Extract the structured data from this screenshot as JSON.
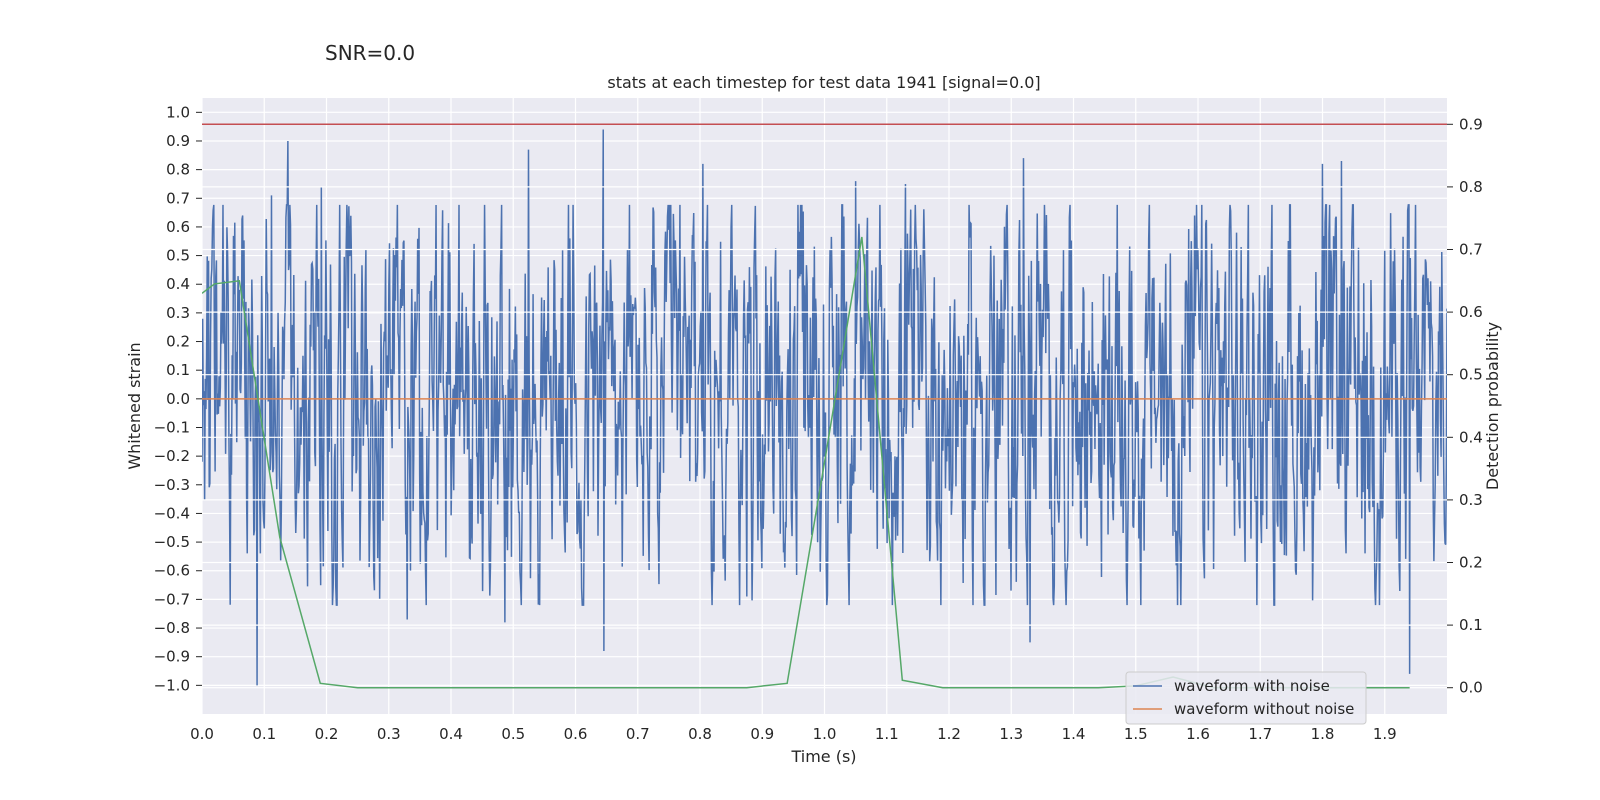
{
  "figure": {
    "suptitle": "SNR=0.0"
  },
  "chart_data": {
    "type": "line",
    "title": "stats at each timestep for test data 1941 [signal=0.0]",
    "xlabel": "Time (s)",
    "ylabel": "Whitened strain",
    "y2label": "Detection probability",
    "xlim": [
      0.0,
      2.0
    ],
    "ylim": [
      -1.1,
      1.05
    ],
    "y2lim": [
      -0.042,
      0.942
    ],
    "x_ticks": [
      "0.0",
      "0.1",
      "0.2",
      "0.3",
      "0.4",
      "0.5",
      "0.6",
      "0.7",
      "0.8",
      "0.9",
      "1.0",
      "1.1",
      "1.2",
      "1.3",
      "1.4",
      "1.5",
      "1.6",
      "1.7",
      "1.8",
      "1.9"
    ],
    "y_ticks": [
      "1.0",
      "0.9",
      "0.8",
      "0.7",
      "0.6",
      "0.5",
      "0.4",
      "0.3",
      "0.2",
      "0.1",
      "0.0",
      "−0.1",
      "−0.2",
      "−0.3",
      "−0.4",
      "−0.5",
      "−0.6",
      "−0.7",
      "−0.8",
      "−0.9",
      "−1.0"
    ],
    "y2_ticks": [
      "0.9",
      "0.8",
      "0.7",
      "0.6",
      "0.5",
      "0.4",
      "0.3",
      "0.2",
      "0.1",
      "0.0"
    ],
    "grid": true,
    "legend_placement": "lower-right",
    "colors": {
      "noisy": "#4c72b0",
      "clean": "#dd8452",
      "prob": "#55a868",
      "threshold": "#c44e52",
      "background": "#eaeaf2"
    },
    "series": [
      {
        "name": "waveform with noise",
        "kind": "noise",
        "sample_count": 1900,
        "amplitude_range": [
          -1.0,
          0.94
        ],
        "peaks": [
          {
            "x": 0.065,
            "y": 0.64
          },
          {
            "x": 0.088,
            "y": -1.0
          },
          {
            "x": 0.112,
            "y": 0.71
          },
          {
            "x": 0.138,
            "y": 0.9
          },
          {
            "x": 0.192,
            "y": 0.74
          },
          {
            "x": 0.33,
            "y": -0.77
          },
          {
            "x": 0.487,
            "y": -0.78
          },
          {
            "x": 0.525,
            "y": 0.87
          },
          {
            "x": 0.645,
            "y": 0.94
          },
          {
            "x": 0.646,
            "y": -0.88
          },
          {
            "x": 0.805,
            "y": 0.82
          },
          {
            "x": 0.875,
            "y": -0.69
          },
          {
            "x": 1.05,
            "y": 0.76
          },
          {
            "x": 1.13,
            "y": 0.75
          },
          {
            "x": 1.32,
            "y": 0.84
          },
          {
            "x": 1.33,
            "y": -0.85
          },
          {
            "x": 1.8,
            "y": 0.82
          },
          {
            "x": 1.83,
            "y": 0.83
          },
          {
            "x": 1.94,
            "y": -0.96
          }
        ]
      },
      {
        "name": "waveform without noise",
        "kind": "line",
        "x": [
          0.0,
          2.0
        ],
        "y": [
          0.0,
          0.0
        ]
      },
      {
        "name": "",
        "kind": "line",
        "axis": "right",
        "x": [
          0.0,
          0.02,
          0.06,
          0.125,
          0.19,
          0.25,
          0.31,
          0.375,
          0.44,
          0.5,
          0.56,
          0.625,
          0.69,
          0.75,
          0.81,
          0.875,
          0.94,
          1.0,
          1.06,
          1.125,
          1.19,
          1.25,
          1.31,
          1.375,
          1.44,
          1.5,
          1.56,
          1.625,
          1.69,
          1.75,
          1.81,
          1.875,
          1.94
        ],
        "y": [
          0.63,
          0.645,
          0.65,
          0.24,
          0.007,
          0.0,
          0.0,
          0.0,
          0.0,
          0.0,
          0.0,
          0.0,
          0.0,
          0.0,
          0.0,
          0.0,
          0.007,
          0.36,
          0.72,
          0.012,
          0.0,
          0.0,
          0.0,
          0.0,
          0.0,
          0.003,
          0.017,
          0.0,
          0.0,
          0.0,
          0.0,
          0.0,
          0.0
        ]
      },
      {
        "name": "",
        "kind": "hline",
        "axis": "right",
        "y": 0.9
      }
    ]
  }
}
